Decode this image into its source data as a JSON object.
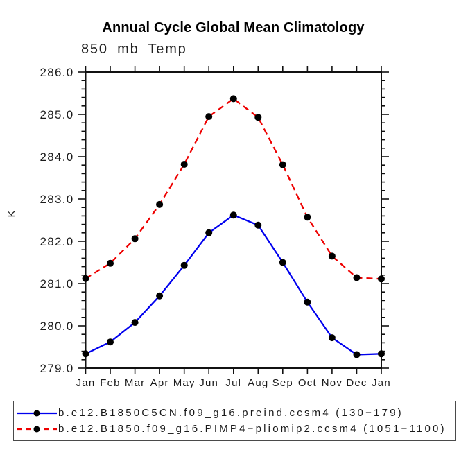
{
  "chart_data": {
    "type": "line",
    "title": "Annual Cycle Global Mean Climatology",
    "subtitle": "850 mb Temp",
    "ylabel": "K",
    "xlabel": "",
    "grid": false,
    "legend_position": "bottom-boxed",
    "categories": [
      "Jan",
      "Feb",
      "Mar",
      "Apr",
      "May",
      "Jun",
      "Jul",
      "Aug",
      "Sep",
      "Oct",
      "Nov",
      "Dec",
      "Jan"
    ],
    "ylim": [
      279.0,
      286.0
    ],
    "ytick_step": 1.0,
    "ytick_minor_step": 0.2,
    "ytick_labels": [
      "279.0",
      "280.0",
      "281.0",
      "282.0",
      "283.0",
      "284.0",
      "285.0",
      "286.0"
    ],
    "frame_color": "#111111",
    "marker_shape": "circle",
    "series": [
      {
        "name": "b.e12.B1850C5CN.f09_g16.preind.ccsm4 (130−179)",
        "color": "#0000ee",
        "style": "solid",
        "marker_color": "#000000",
        "values": [
          279.34,
          279.62,
          280.08,
          280.71,
          281.43,
          282.2,
          282.62,
          282.38,
          281.5,
          280.56,
          279.72,
          279.32,
          279.34
        ]
      },
      {
        "name": "b.e12.B1850.f09_g16.PIMP4−pliomip2.ccsm4 (1051−1100)",
        "color": "#ee0000",
        "style": "dashed",
        "marker_color": "#000000",
        "values": [
          281.12,
          281.48,
          282.06,
          282.87,
          283.82,
          284.95,
          285.37,
          284.93,
          283.81,
          282.57,
          281.65,
          281.14,
          281.11
        ]
      }
    ]
  }
}
